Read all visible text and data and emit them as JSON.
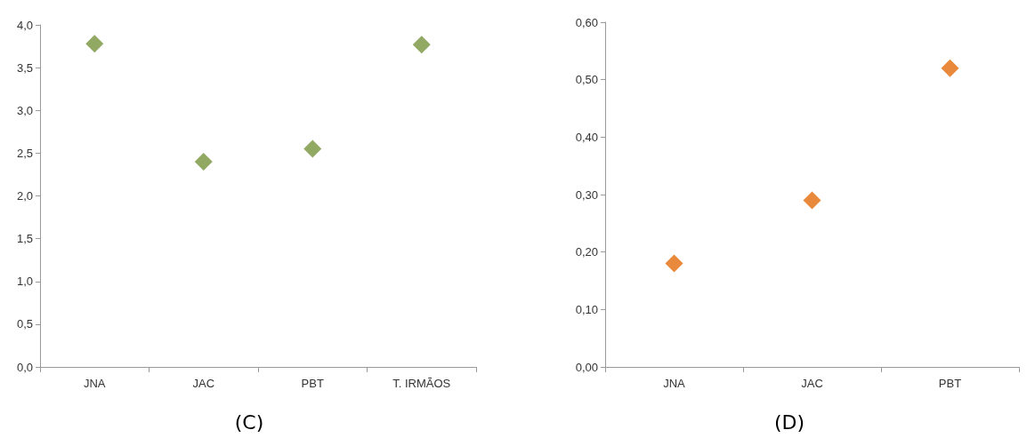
{
  "chart_data": [
    {
      "type": "scatter",
      "title": "(C)",
      "categories": [
        "JNA",
        "JAC",
        "PBT",
        "T. IRMÃOS"
      ],
      "values": [
        3.78,
        2.4,
        2.55,
        3.77
      ],
      "color": "#77933c",
      "marker": "diamond",
      "ylim": [
        0,
        4
      ],
      "yticks": [
        {
          "value": 0,
          "label": "0,0"
        },
        {
          "value": 0.5,
          "label": "0,5"
        },
        {
          "value": 1,
          "label": "1,0"
        },
        {
          "value": 1.5,
          "label": "1,5"
        },
        {
          "value": 2,
          "label": "2,0"
        },
        {
          "value": 2.5,
          "label": "2,5"
        },
        {
          "value": 3,
          "label": "3,0"
        },
        {
          "value": 3.5,
          "label": "3,5"
        },
        {
          "value": 4,
          "label": "4,0"
        }
      ]
    },
    {
      "type": "scatter",
      "title": "(D)",
      "categories": [
        "JNA",
        "JAC",
        "PBT"
      ],
      "values": [
        0.18,
        0.29,
        0.52
      ],
      "color": "#e46c0a",
      "marker": "diamond",
      "ylim": [
        0,
        0.6
      ],
      "yticks": [
        {
          "value": 0,
          "label": "0,00"
        },
        {
          "value": 0.1,
          "label": "0,10"
        },
        {
          "value": 0.2,
          "label": "0,20"
        },
        {
          "value": 0.3,
          "label": "0,30"
        },
        {
          "value": 0.4,
          "label": "0,40"
        },
        {
          "value": 0.5,
          "label": "0,50"
        },
        {
          "value": 0.6,
          "label": "0,60"
        }
      ]
    }
  ]
}
